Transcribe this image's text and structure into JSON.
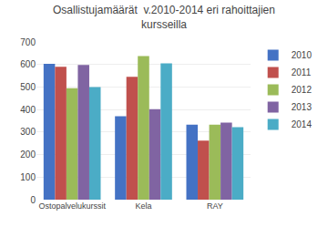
{
  "chart_data": {
    "type": "bar",
    "title": "Osallistujamäärät  v.2010-2014 eri rahoittajien\nkursseilla",
    "categories": [
      "Ostopalvelukurssit",
      "Kela",
      "RAY"
    ],
    "series": [
      {
        "name": "2010",
        "color": "#4472C4",
        "values": [
          603,
          370,
          333
        ]
      },
      {
        "name": "2011",
        "color": "#C0504D",
        "values": [
          590,
          545,
          262
        ]
      },
      {
        "name": "2012",
        "color": "#9BBB59",
        "values": [
          495,
          637,
          333
        ]
      },
      {
        "name": "2013",
        "color": "#8064A2",
        "values": [
          598,
          402,
          342
        ]
      },
      {
        "name": "2014",
        "color": "#4BACC6",
        "values": [
          500,
          605,
          322
        ]
      }
    ],
    "ylim": [
      0,
      700
    ],
    "yticks": [
      0,
      100,
      200,
      300,
      400,
      500,
      600,
      700
    ],
    "grid": true,
    "legend": "right"
  }
}
